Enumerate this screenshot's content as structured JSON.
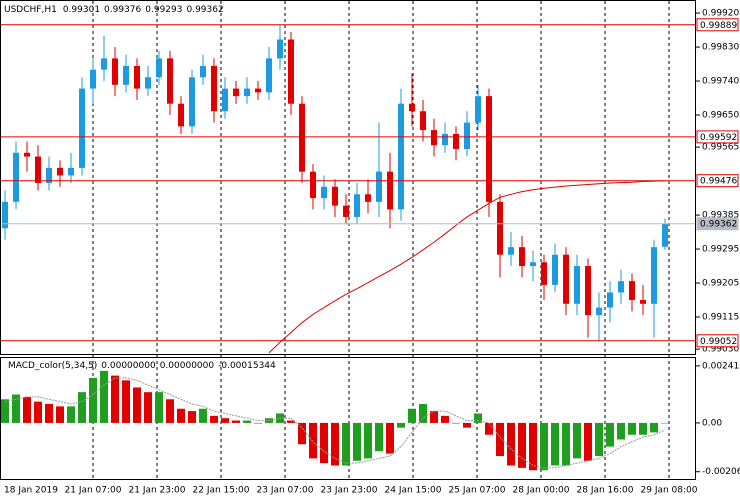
{
  "chart_data": [
    {
      "type": "candlestick",
      "title": "USDCHF,H1",
      "up_color": "#1e9be0",
      "down_color": "#e00000",
      "ma_color": "#e00000",
      "open": [
        0.9935,
        0.9942,
        0.9955,
        0.9954,
        0.9947,
        0.9951,
        0.9949,
        0.9951,
        0.9972,
        0.9977,
        0.998,
        0.9973,
        0.9978,
        0.9972,
        0.9975,
        0.998,
        0.9968,
        0.9962,
        0.9975,
        0.9978,
        0.9966,
        0.9972,
        0.997,
        0.9972,
        0.9971,
        0.998,
        0.9985,
        0.9968,
        0.995,
        0.9943,
        0.9946,
        0.9941,
        0.9938,
        0.9944,
        0.9942,
        0.995,
        0.994,
        0.9968,
        0.9966,
        0.9961,
        0.9957,
        0.996,
        0.9956,
        0.9963,
        0.997,
        0.9942,
        0.9928,
        0.993,
        0.9925,
        0.9926,
        0.992,
        0.9928,
        0.9915,
        0.9925,
        0.9912,
        0.9914,
        0.9918,
        0.9921,
        0.9916,
        0.9915,
        0.99301
      ],
      "high": [
        0.9945,
        0.9958,
        0.9958,
        0.9957,
        0.9954,
        0.9953,
        0.9955,
        0.9975,
        0.998,
        0.9986,
        0.9983,
        0.9981,
        0.998,
        0.9978,
        0.9982,
        0.9982,
        0.997,
        0.9977,
        0.9981,
        0.998,
        0.9975,
        0.9974,
        0.9975,
        0.9974,
        0.9983,
        0.9989,
        0.9987,
        0.997,
        0.9952,
        0.9949,
        0.9948,
        0.9944,
        0.9947,
        0.9948,
        0.9963,
        0.9955,
        0.9972,
        0.9976,
        0.9969,
        0.9964,
        0.9963,
        0.9962,
        0.9966,
        0.9973,
        0.9972,
        0.9944,
        0.9934,
        0.9933,
        0.9929,
        0.9928,
        0.9931,
        0.993,
        0.9928,
        0.9927,
        0.9918,
        0.9921,
        0.9924,
        0.9923,
        0.992,
        0.9932,
        0.99376
      ],
      "low": [
        0.9932,
        0.994,
        0.995,
        0.9945,
        0.9945,
        0.9946,
        0.9947,
        0.9949,
        0.9968,
        0.9974,
        0.997,
        0.9971,
        0.9969,
        0.997,
        0.9973,
        0.9965,
        0.996,
        0.996,
        0.9973,
        0.9963,
        0.9964,
        0.9968,
        0.9968,
        0.9969,
        0.9969,
        0.9977,
        0.9965,
        0.9947,
        0.994,
        0.994,
        0.9938,
        0.9936,
        0.9936,
        0.9939,
        0.9938,
        0.9935,
        0.9937,
        0.9962,
        0.9958,
        0.9954,
        0.9955,
        0.9953,
        0.9954,
        0.9961,
        0.9938,
        0.9922,
        0.9925,
        0.9922,
        0.9921,
        0.9916,
        0.9918,
        0.9912,
        0.9912,
        0.9906,
        0.9905,
        0.991,
        0.9915,
        0.9913,
        0.9912,
        0.9906,
        0.99293
      ],
      "close": [
        0.9942,
        0.9955,
        0.9954,
        0.9947,
        0.9951,
        0.9949,
        0.9951,
        0.9972,
        0.9977,
        0.998,
        0.9973,
        0.9978,
        0.9972,
        0.9975,
        0.998,
        0.9968,
        0.9962,
        0.9975,
        0.9978,
        0.9966,
        0.9972,
        0.997,
        0.9972,
        0.9971,
        0.998,
        0.9985,
        0.9968,
        0.995,
        0.9943,
        0.9946,
        0.9941,
        0.9938,
        0.9944,
        0.9942,
        0.995,
        0.994,
        0.9968,
        0.9966,
        0.9961,
        0.9957,
        0.996,
        0.9956,
        0.9963,
        0.997,
        0.9942,
        0.9928,
        0.993,
        0.9925,
        0.9926,
        0.992,
        0.9928,
        0.9915,
        0.9925,
        0.9912,
        0.9914,
        0.9918,
        0.9921,
        0.9916,
        0.9915,
        0.993,
        0.99362
      ],
      "ma": [
        null,
        null,
        null,
        null,
        null,
        null,
        null,
        null,
        null,
        null,
        null,
        null,
        null,
        null,
        null,
        null,
        null,
        null,
        null,
        null,
        null,
        null,
        null,
        null,
        0.9902,
        0.99048,
        0.99074,
        0.991,
        0.99122,
        0.9914,
        0.99158,
        0.99175,
        0.9919,
        0.99206,
        0.99222,
        0.99238,
        0.99255,
        0.99273,
        0.99293,
        0.99313,
        0.99335,
        0.99358,
        0.9938,
        0.99398,
        0.99416,
        0.99432,
        0.9944,
        0.99447,
        0.99452,
        0.99456,
        0.99459,
        0.99462,
        0.99464,
        0.99466,
        0.99468,
        0.9947,
        0.99471,
        0.99472,
        0.99474,
        0.99475,
        0.99476
      ],
      "levels": [
        {
          "value": 0.99889,
          "color": "#e00000"
        },
        {
          "value": 0.99592,
          "color": "#e00000"
        },
        {
          "value": 0.99476,
          "color": "#e00000"
        },
        {
          "value": 0.99052,
          "color": "#e00000"
        }
      ],
      "last_price": {
        "value": 0.99362,
        "color": "#b8bcc4"
      },
      "ylim": [
        0.99017,
        0.99952
      ],
      "yticks": [
        {
          "value": 0.9992,
          "label": "0.99920"
        },
        {
          "value": 0.9983,
          "label": "0.99830"
        },
        {
          "value": 0.9974,
          "label": "0.99740"
        },
        {
          "value": 0.9965,
          "label": "0.99650"
        },
        {
          "value": 0.99565,
          "label": "0.99565"
        },
        {
          "value": 0.99385,
          "label": "0.99385"
        },
        {
          "value": 0.99295,
          "label": "0.99295"
        },
        {
          "value": 0.99205,
          "label": "0.99205"
        },
        {
          "value": 0.99115,
          "label": "0.99115"
        },
        {
          "value": 0.9903,
          "label": "0.99030"
        }
      ],
      "xtick_labels": [
        "18 Jan 2019",
        "21 Jan 07:00",
        "21 Jan 23:00",
        "22 Jan 15:00",
        "23 Jan 07:00",
        "23 Jan 23:00",
        "24 Jan 15:00",
        "25 Jan 07:00",
        "28 Jan 00:00",
        "28 Jan 16:00",
        "29 Jan 08:00"
      ]
    },
    {
      "type": "macd",
      "title": "MACD_color(5,34,5)",
      "indicator_values": [
        {
          "value": 0,
          "label": "0.00000000"
        },
        {
          "value": 0,
          "label": "0.00000000"
        },
        {
          "value": -0.00015344,
          "label": "-0.00015344"
        }
      ],
      "up_color": "#1f9e1f",
      "down_color": "#e00000",
      "signal_color": "#9a9a9a",
      "values": [
        0.001,
        0.0012,
        0.0011,
        0.0009,
        0.0008,
        0.0007,
        0.0007,
        0.0013,
        0.0019,
        0.0022,
        0.002,
        0.0018,
        0.0015,
        0.0013,
        0.0013,
        0.001,
        0.0006,
        0.0005,
        0.0006,
        0.0003,
        0.0002,
        0.0001,
        0.0001,
        0,
        0.0002,
        0.0004,
        0.0001,
        -0.0009,
        -0.0015,
        -0.0017,
        -0.0018,
        -0.0018,
        -0.0016,
        -0.0015,
        -0.0012,
        -0.0013,
        -0.0002,
        0.0006,
        0.0008,
        0.0005,
        0.0003,
        0,
        -0.0002,
        0.0004,
        -0.0005,
        -0.0014,
        -0.0018,
        -0.0019,
        -0.002,
        -0.002,
        -0.0018,
        -0.0018,
        -0.0015,
        -0.0016,
        -0.0014,
        -0.001,
        -0.0007,
        -0.0005,
        -0.0005,
        -0.0004,
        0
      ],
      "signal": [
        0.0009,
        0.001,
        0.0011,
        0.0011,
        0.001,
        0.0009,
        0.0008,
        0.0009,
        0.0012,
        0.0016,
        0.0019,
        0.0019,
        0.0018,
        0.0016,
        0.0014,
        0.0012,
        0.001,
        0.0008,
        0.0007,
        0.0005,
        0.0004,
        0.0003,
        0.0002,
        0.0001,
        0.0001,
        0.0002,
        0.0002,
        -0.0002,
        -0.0008,
        -0.0012,
        -0.0015,
        -0.0017,
        -0.0017,
        -0.0016,
        -0.0015,
        -0.0014,
        -0.001,
        -0.0004,
        0.0002,
        0.0005,
        0.0005,
        0.0003,
        0.0001,
        0.0001,
        0,
        -0.0006,
        -0.0011,
        -0.0015,
        -0.0018,
        -0.0019,
        -0.0019,
        -0.0018,
        -0.0017,
        -0.0016,
        -0.0015,
        -0.0013,
        -0.001,
        -0.0008,
        -0.0006,
        -0.0005,
        -0.0003
      ],
      "ylim": [
        -0.002371,
        0.002745
      ],
      "yticks": [
        0.0024124,
        {
          "value": 0,
          "label": "0.00"
        },
        -0.002063
      ]
    }
  ]
}
